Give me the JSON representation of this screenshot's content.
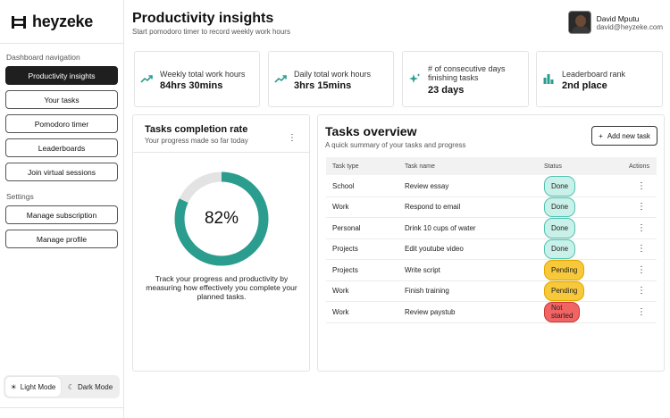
{
  "brand": {
    "name": "heyzeke"
  },
  "sidebar": {
    "nav_heading": "Dashboard navigation",
    "nav_items": [
      {
        "label": "Productivity insights",
        "active": true
      },
      {
        "label": "Your tasks"
      },
      {
        "label": "Pomodoro timer"
      },
      {
        "label": "Leaderboards"
      },
      {
        "label": "Join virtual sessions"
      }
    ],
    "settings_heading": "Settings",
    "settings_items": [
      {
        "label": "Manage subscription"
      },
      {
        "label": "Manage profile"
      }
    ],
    "mode": {
      "light": "Light Mode",
      "dark": "Dark Mode",
      "selected": "light"
    }
  },
  "header": {
    "title": "Productivity insights",
    "subtitle": "Start pomodoro timer to record weekly work hours",
    "user": {
      "name": "David Mputu",
      "email": "david@heyzeke.com"
    }
  },
  "stats": [
    {
      "icon": "trend-up-icon",
      "label": "Weekly total work hours",
      "value": "84hrs 30mins"
    },
    {
      "icon": "trend-up-icon",
      "label": "Daily total work hours",
      "value": "3hrs 15mins"
    },
    {
      "icon": "sparkle-icon",
      "label": "# of consecutive days finishing tasks",
      "value": "23 days"
    },
    {
      "icon": "bar-chart-icon",
      "label": "Leaderboard rank",
      "value": "2nd place"
    }
  ],
  "completion": {
    "title": "Tasks completion rate",
    "subtitle": "Your progress made so far today",
    "percent_label": "82%",
    "percent": 82,
    "description": "Track your progress and productivity by measuring how effectively you complete your planned tasks."
  },
  "overview": {
    "title": "Tasks overview",
    "subtitle": "A quick summary of your tasks and progress",
    "add_button": "Add new task",
    "columns": {
      "type": "Task type",
      "name": "Task name",
      "status": "Status",
      "actions": "Actions"
    },
    "rows": [
      {
        "type": "School",
        "name": "Review essay",
        "status": "Done"
      },
      {
        "type": "Work",
        "name": "Respond to email",
        "status": "Done"
      },
      {
        "type": "Personal",
        "name": "Drink 10 cups of water",
        "status": "Done"
      },
      {
        "type": "Projects",
        "name": "Edit youtube video",
        "status": "Done"
      },
      {
        "type": "Projects",
        "name": "Write script",
        "status": "Pending"
      },
      {
        "type": "Work",
        "name": "Finish training",
        "status": "Pending"
      },
      {
        "type": "Work",
        "name": "Review paystub",
        "status": "Not started"
      }
    ]
  },
  "colors": {
    "accent": "#2a9d8f",
    "ring_track": "#e3e3e3",
    "done_bg": "#c9f1ea",
    "done_border": "#53c2b1",
    "pending_bg": "#f7c83a",
    "pending_border": "#e0a800",
    "not_started_bg": "#f26464",
    "not_started_border": "#c73737"
  }
}
